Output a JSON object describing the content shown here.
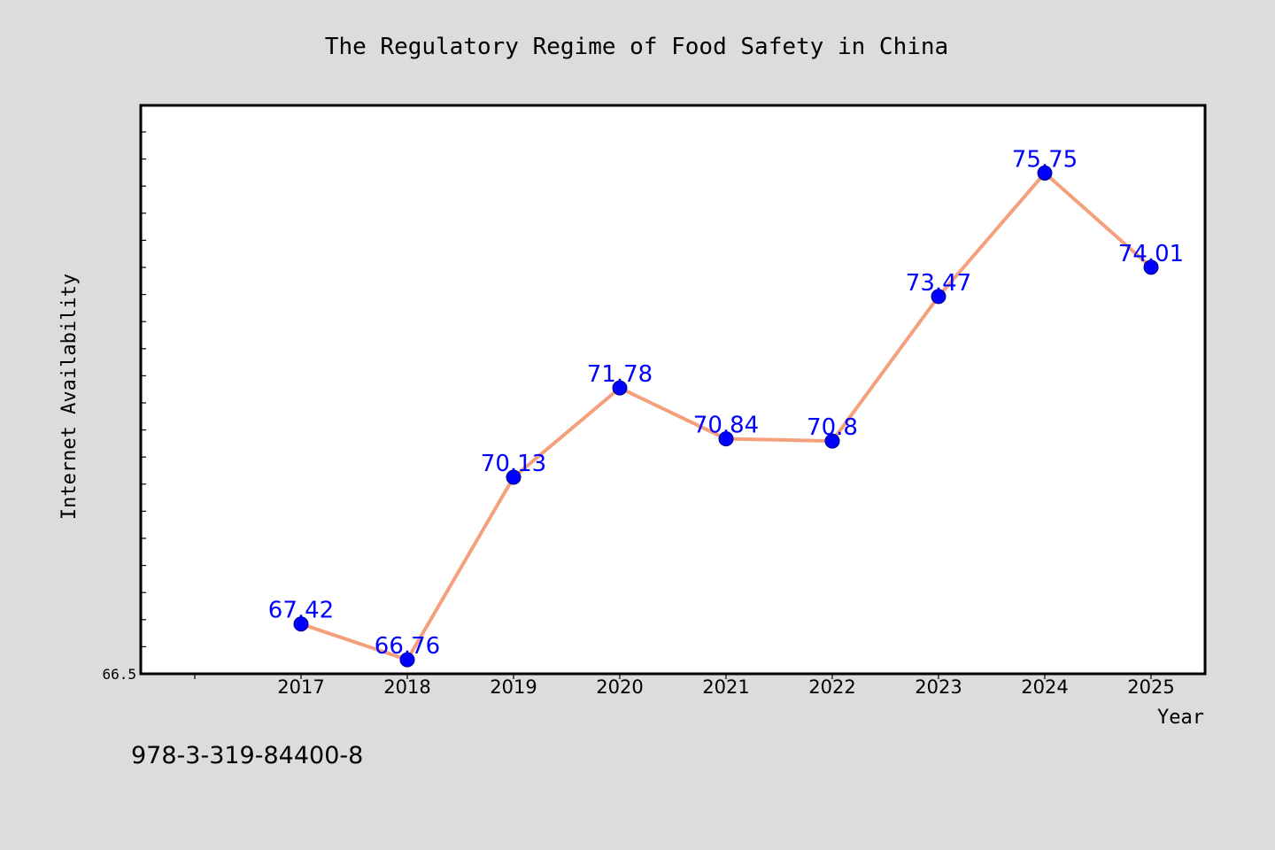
{
  "chart_data": {
    "type": "line",
    "title": "The Regulatory Regime of Food Safety in China",
    "xlabel": "Year",
    "ylabel": "Internet Availability",
    "categories": [
      "2017",
      "2018",
      "2019",
      "2020",
      "2021",
      "2022",
      "2023",
      "2024",
      "2025"
    ],
    "series": [
      {
        "values": [
          67.42,
          66.76,
          70.13,
          71.78,
          70.84,
          70.8,
          73.47,
          75.75,
          74.01
        ],
        "labels": [
          "67.42",
          "66.76",
          "70.13",
          "71.78",
          "70.84",
          "70.8",
          "73.47",
          "75.75",
          "74.01"
        ],
        "line_color": "#f4a07c",
        "marker_color": "#0000ff"
      }
    ],
    "ylim": [
      66.5,
      77.0
    ],
    "yticks_labeled": [
      "66.5"
    ],
    "grid": false,
    "legend": "none"
  },
  "footer": {
    "isbn": "978-3-319-84400-8"
  },
  "colors": {
    "background": "#dcdcdc",
    "plot_area": "#ffffff",
    "line": "#f4a07c",
    "marker": "#0000ff",
    "data_label": "#0000ff"
  }
}
